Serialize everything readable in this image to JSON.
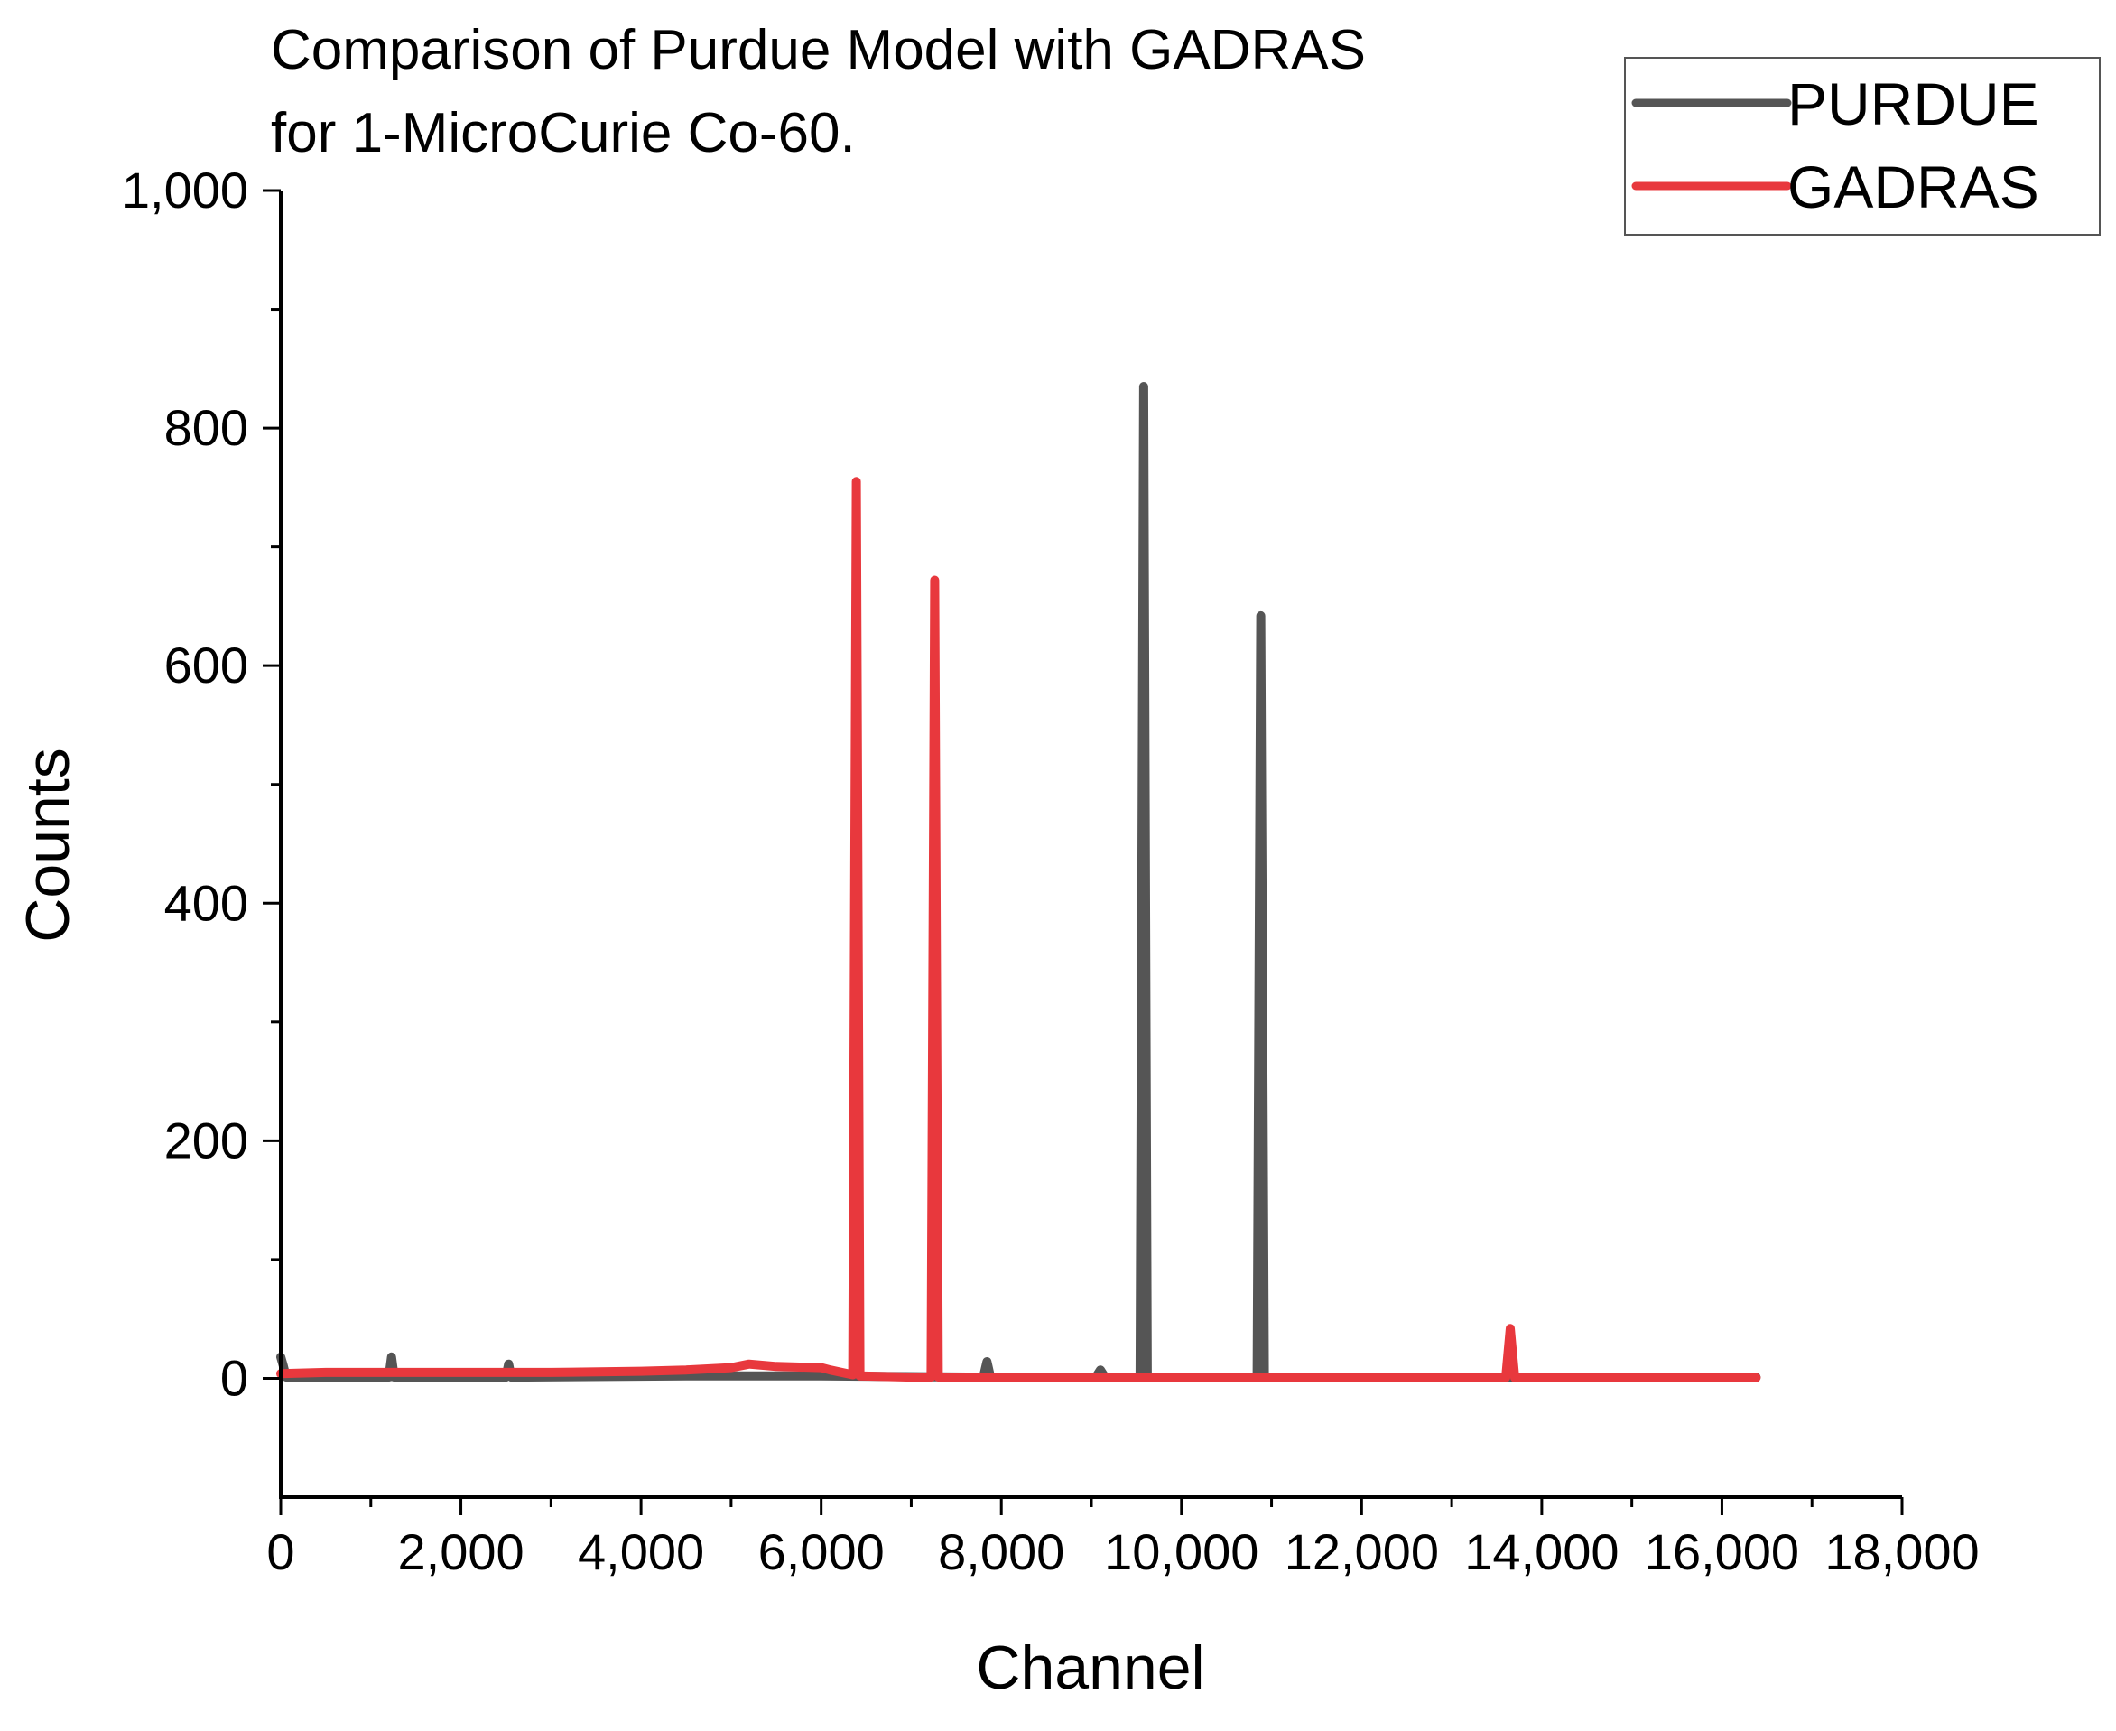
{
  "chart_data": {
    "type": "line",
    "title": [
      "Comparison of Purdue Model with GADRAS",
      "for 1-MicroCurie Co-60."
    ],
    "xlabel": "Channel",
    "ylabel": "Counts",
    "xlim": [
      0,
      18000
    ],
    "ylim": [
      -100,
      1000
    ],
    "x_ticks": [
      0,
      2000,
      4000,
      6000,
      8000,
      10000,
      12000,
      14000,
      16000,
      18000
    ],
    "x_tick_labels": [
      "0",
      "2,000",
      "4,000",
      "6,000",
      "8,000",
      "10,000",
      "12,000",
      "14,000",
      "16,000",
      "18,000"
    ],
    "y_ticks": [
      0,
      200,
      400,
      600,
      800,
      1000
    ],
    "y_tick_labels": [
      "0",
      "200",
      "400",
      "600",
      "800",
      "1,000"
    ],
    "x_minor_step": 1000,
    "y_minor_step": 100,
    "grid": false,
    "legend_position": "top-right",
    "series": [
      {
        "name": "PURDUE",
        "color": "#555555",
        "x": [
          0,
          30,
          60,
          200,
          1200,
          1230,
          1260,
          2500,
          2530,
          2560,
          4500,
          6000,
          7800,
          7840,
          7880,
          9050,
          9100,
          9150,
          9540,
          9580,
          9620,
          10840,
          10880,
          10920,
          12000,
          14000,
          16000,
          16380
        ],
        "y": [
          18,
          10,
          1,
          1,
          1,
          18,
          1,
          1,
          12,
          1,
          2,
          2,
          1,
          14,
          1,
          1,
          7,
          1,
          1,
          835,
          1,
          1,
          642,
          1,
          1,
          1,
          1,
          1
        ]
      },
      {
        "name": "GADRAS",
        "color": "#e8383d",
        "x": [
          0,
          500,
          1000,
          2000,
          3000,
          4000,
          4500,
          5000,
          5200,
          5500,
          6000,
          6100,
          6350,
          6390,
          6430,
          7000,
          7220,
          7260,
          7300,
          8000,
          10000,
          12000,
          13600,
          13650,
          13700,
          14000,
          16000,
          16380
        ],
        "y": [
          4,
          5,
          5,
          5,
          5,
          6,
          7,
          9,
          12,
          10,
          9,
          7,
          3,
          755,
          2,
          1,
          1,
          672,
          1,
          1,
          0.5,
          0.5,
          0.5,
          42,
          0.5,
          0.5,
          0.5,
          0.5
        ]
      }
    ]
  }
}
